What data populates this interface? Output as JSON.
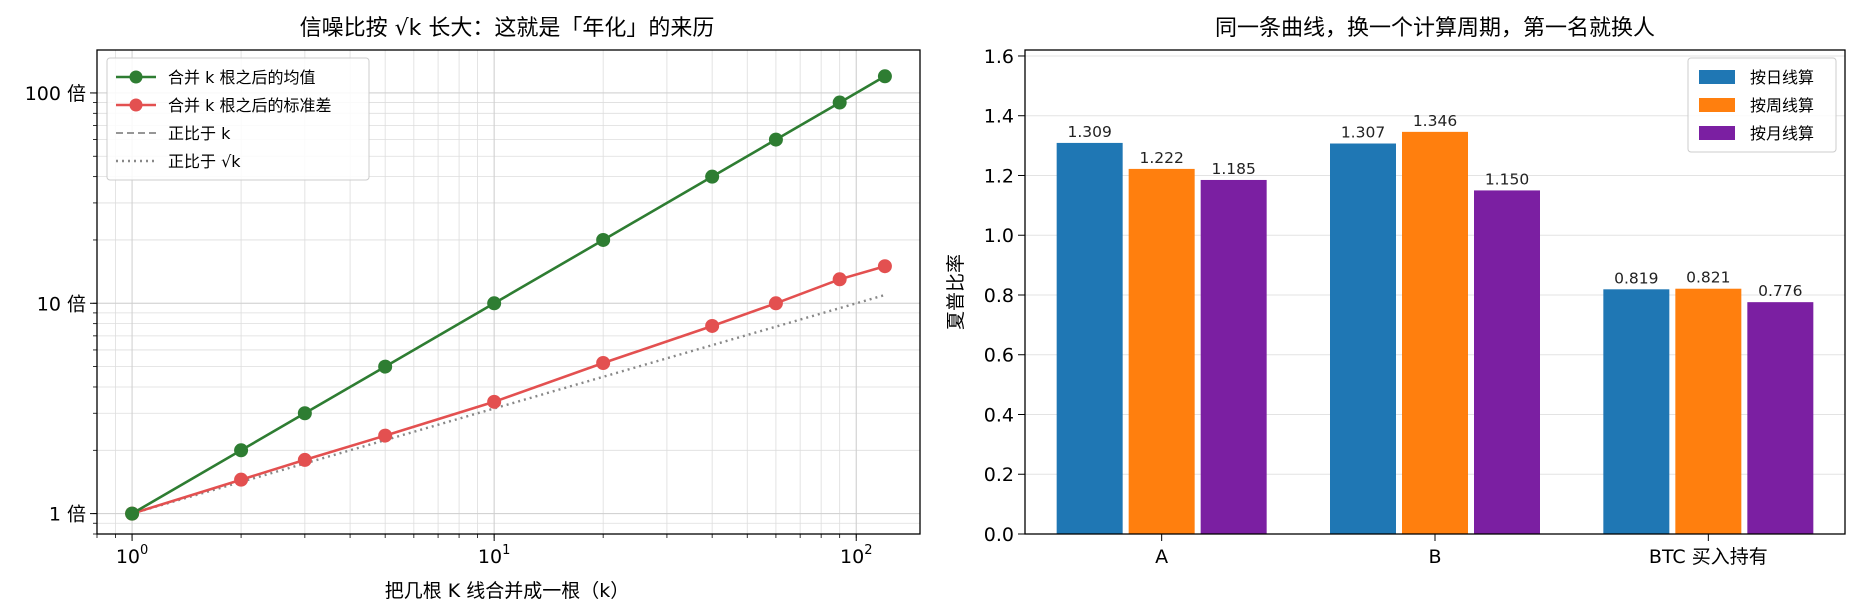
{
  "chart_data": [
    {
      "type": "line",
      "title": "信噪比按 √k 长大：这就是「年化」的来历",
      "xlabel": "把几根 K 线合并成一根（k）",
      "ylabel": "",
      "xscale": "log",
      "yscale": "log",
      "xlim": [
        0.8,
        150
      ],
      "ylim": [
        0.8,
        160
      ],
      "xticks": [
        {
          "value": 1,
          "base": "10",
          "exp": "0"
        },
        {
          "value": 10,
          "base": "10",
          "exp": "1"
        },
        {
          "value": 100,
          "base": "10",
          "exp": "2"
        }
      ],
      "yticks": [
        {
          "value": 1,
          "label": "1 倍"
        },
        {
          "value": 10,
          "label": "10 倍"
        },
        {
          "value": 100,
          "label": "100 倍"
        }
      ],
      "grid": true,
      "legend_position": "top-left",
      "series": [
        {
          "name": "合并 k 根之后的均值",
          "color": "#2e7d32",
          "style": "solid",
          "marker": true,
          "x": [
            1,
            2,
            3,
            5,
            10,
            20,
            40,
            60,
            90,
            120
          ],
          "y": [
            1,
            2,
            3,
            5,
            10,
            20,
            40,
            60,
            90,
            120
          ]
        },
        {
          "name": "合并 k 根之后的标准差",
          "color": "#e35050",
          "style": "solid",
          "marker": true,
          "x": [
            1,
            2,
            3,
            5,
            10,
            20,
            40,
            60,
            90,
            120
          ],
          "y": [
            1,
            1.45,
            1.8,
            2.35,
            3.4,
            5.2,
            7.8,
            10,
            13,
            15
          ]
        },
        {
          "name": "正比于 k",
          "color": "#888888",
          "style": "dashed",
          "marker": false,
          "x": [
            1,
            120
          ],
          "y": [
            1,
            120
          ]
        },
        {
          "name": "正比于 √k",
          "color": "#888888",
          "style": "dotted",
          "marker": false,
          "x": [
            1,
            120
          ],
          "y": [
            1,
            10.95
          ]
        }
      ]
    },
    {
      "type": "bar",
      "title": "同一条曲线，换一个计算周期，第一名就换人",
      "xlabel": "",
      "ylabel": "夏普比率",
      "ylim": [
        0,
        1.62
      ],
      "yticks": [
        0.0,
        0.2,
        0.4,
        0.6,
        0.8,
        1.0,
        1.2,
        1.4,
        1.6
      ],
      "grid": true,
      "legend_position": "top-right",
      "categories": [
        "A",
        "B",
        "BTC 买入持有"
      ],
      "series": [
        {
          "name": "按日线算",
          "color": "#1f77b4",
          "values": [
            1.309,
            1.307,
            0.819
          ],
          "labels": [
            "1.309",
            "1.307",
            "0.819"
          ]
        },
        {
          "name": "按周线算",
          "color": "#ff7f0e",
          "values": [
            1.222,
            1.346,
            0.821
          ],
          "labels": [
            "1.222",
            "1.346",
            "0.821"
          ]
        },
        {
          "name": "按月线算",
          "color": "#7b1fa2",
          "values": [
            1.185,
            1.15,
            0.776
          ],
          "labels": [
            "1.185",
            "1.150",
            "0.776"
          ]
        }
      ]
    }
  ]
}
